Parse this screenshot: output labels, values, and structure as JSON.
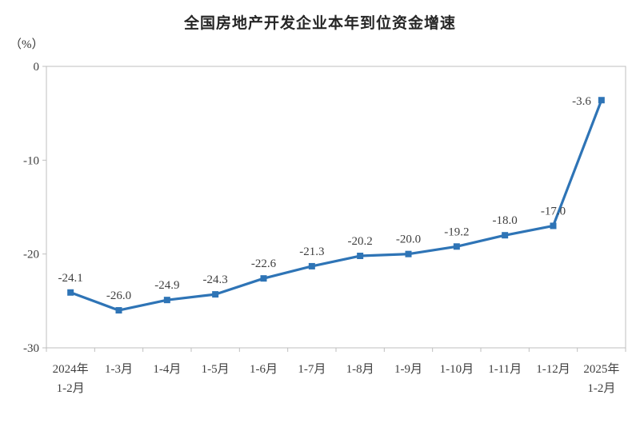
{
  "title": "全国房地产开发企业本年到位资金增速",
  "unit_label": "（%）",
  "chart_data": {
    "type": "line",
    "title": "全国房地产开发企业本年到位资金增速",
    "ylabel": "（%）",
    "categories": [
      "2024年\n1-2月",
      "1-3月",
      "1-4月",
      "1-5月",
      "1-6月",
      "1-7月",
      "1-8月",
      "1-9月",
      "1-10月",
      "1-11月",
      "1-12月",
      "2025年\n1-2月"
    ],
    "values": [
      -24.1,
      -26.0,
      -24.9,
      -24.3,
      -22.6,
      -21.3,
      -20.2,
      -20.0,
      -19.2,
      -18.0,
      -17.0,
      -3.6
    ],
    "data_labels": [
      "-24.1",
      "-26.0",
      "-24.9",
      "-24.3",
      "-22.6",
      "-21.3",
      "-20.2",
      "-20.0",
      "-19.2",
      "-18.0",
      "-17.0",
      "-3.6"
    ],
    "ylim": [
      -30,
      0
    ],
    "yticks": [
      0,
      -10,
      -20,
      -30
    ],
    "ytick_labels": [
      "0",
      "-10",
      "-20",
      "-30"
    ],
    "grid": false,
    "legend": "none",
    "marker": "square",
    "colors": {
      "line": "#2E74B6",
      "marker": "#2E74B6",
      "axis_border": "#BFBFBF",
      "tick_text": "#3F3F3F",
      "data_label_text": "#3F3F3F",
      "title_text": "#262626",
      "background": "#FFFFFF"
    }
  }
}
